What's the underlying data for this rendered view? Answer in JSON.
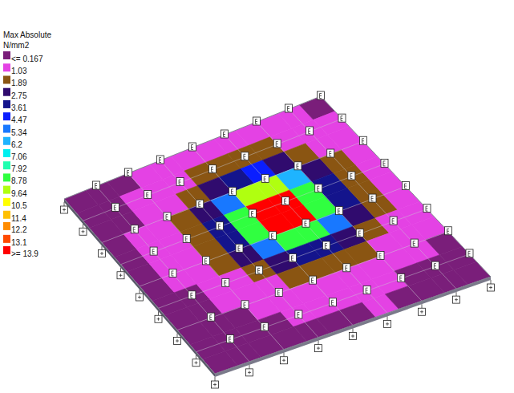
{
  "chart_data": {
    "type": "heatmap",
    "title": "Max Absolute",
    "subtitle": "N/mm2",
    "cells": [
      [
        0.62,
        0.78,
        0.96,
        1.12,
        1.3,
        1.5,
        1.66,
        1.7,
        1.52,
        1.28,
        1.1,
        0.92
      ],
      [
        0.74,
        0.9,
        1.08,
        1.35,
        1.75,
        2.2,
        2.5,
        2.55,
        2.25,
        1.78,
        1.3,
        1.06
      ],
      [
        0.82,
        0.98,
        1.24,
        1.72,
        2.45,
        3.4,
        4.4,
        4.5,
        3.45,
        2.5,
        1.68,
        1.22
      ],
      [
        0.86,
        1.06,
        1.44,
        2.2,
        3.35,
        6.1,
        9.7,
        9.9,
        6.2,
        3.4,
        2.1,
        1.42
      ],
      [
        0.88,
        1.12,
        1.58,
        2.42,
        4.25,
        9.4,
        14.3,
        14.1,
        9.6,
        4.15,
        2.38,
        1.55
      ],
      [
        0.95,
        1.18,
        1.62,
        2.36,
        4.1,
        9.2,
        14.0,
        13.95,
        9.3,
        4.3,
        2.45,
        1.65
      ],
      [
        0.9,
        1.1,
        1.48,
        2.1,
        3.25,
        5.8,
        9.2,
        9.3,
        5.9,
        3.2,
        2.2,
        1.5
      ],
      [
        0.86,
        1.02,
        1.28,
        1.68,
        2.35,
        3.2,
        4.1,
        4.15,
        3.25,
        2.38,
        1.75,
        1.3
      ],
      [
        0.8,
        0.95,
        1.1,
        1.3,
        1.66,
        2.1,
        2.35,
        2.38,
        2.12,
        1.7,
        1.36,
        1.1
      ],
      [
        0.7,
        0.86,
        0.98,
        1.08,
        1.22,
        1.42,
        1.58,
        1.62,
        1.46,
        1.24,
        1.12,
        0.95
      ],
      [
        0.64,
        0.72,
        0.85,
        0.94,
        1.04,
        1.1,
        1.18,
        1.2,
        1.08,
        1.02,
        0.9,
        0.8
      ],
      [
        0.55,
        0.62,
        0.7,
        0.78,
        0.86,
        0.92,
        0.98,
        1.05,
        0.96,
        0.88,
        0.76,
        0.66
      ]
    ],
    "colorbar": {
      "range": [
        0.167,
        13.9
      ],
      "ticks": [
        {
          "value": 0.167,
          "label": "<= 0.167"
        },
        1.03,
        1.89,
        2.75,
        3.61,
        4.47,
        5.34,
        6.2,
        7.06,
        7.92,
        8.78,
        9.64,
        10.5,
        11.4,
        12.2,
        13.1,
        {
          "value": 13.9,
          "label": ">= 13.9"
        }
      ],
      "colors": [
        "#7a1e7a",
        "#e442e4",
        "#8a5512",
        "#300b6e",
        "#14148c",
        "#0a1eff",
        "#1878ff",
        "#1eb4ff",
        "#00f0f0",
        "#20ffb0",
        "#30ff40",
        "#b0ff10",
        "#ffff00",
        "#ffc000",
        "#ff8c00",
        "#ff4a00",
        "#ff0000"
      ]
    }
  }
}
